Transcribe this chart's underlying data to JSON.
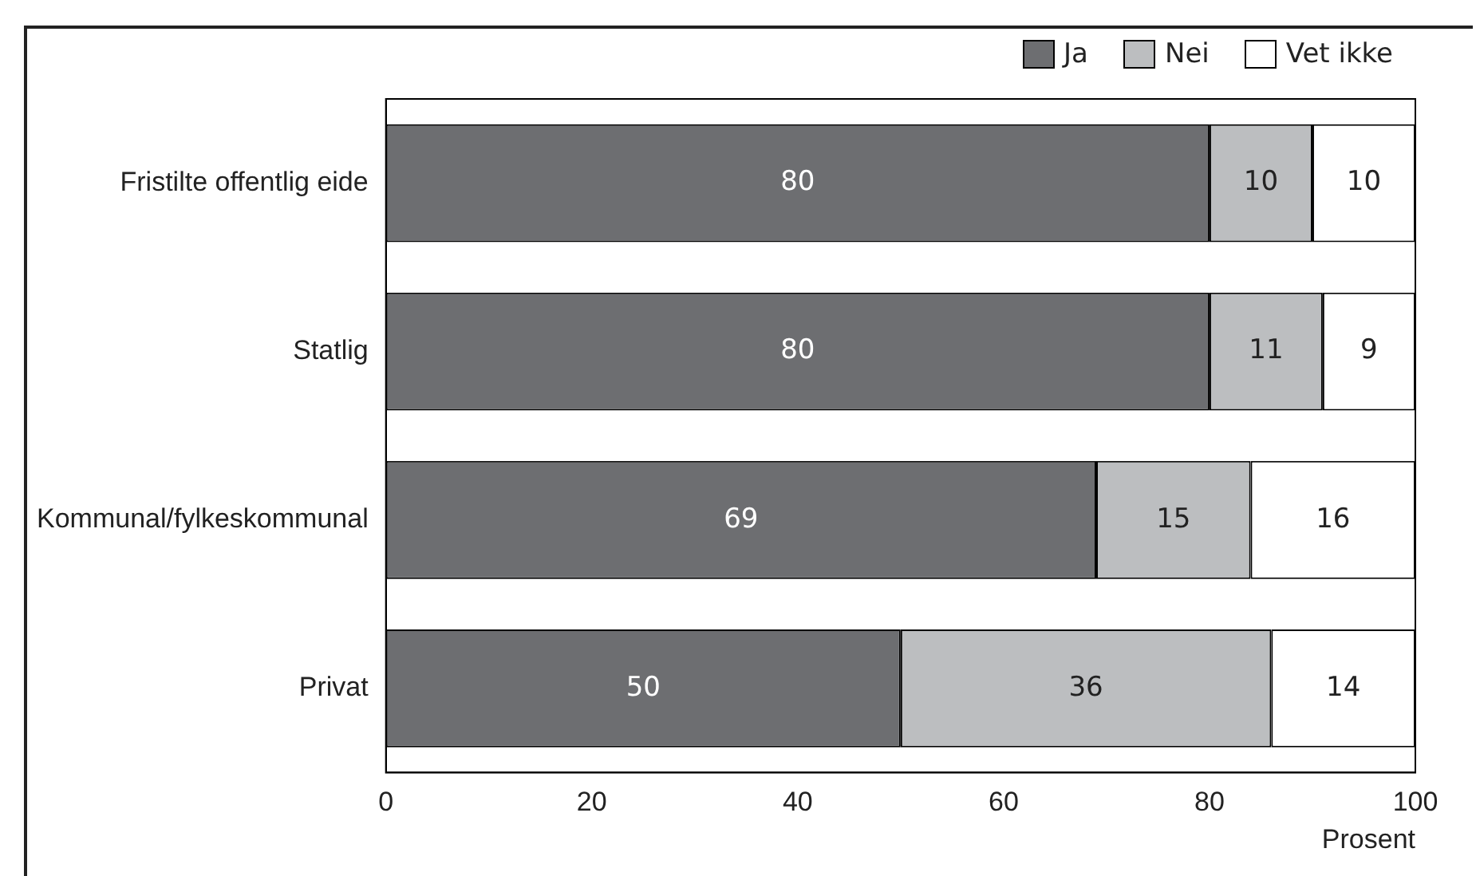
{
  "chart_data": {
    "type": "bar",
    "orientation": "horizontal",
    "stacked": true,
    "categories": [
      "Fristilte offentlig eide",
      "Statlig",
      "Kommunal/fylkeskommunal",
      "Privat"
    ],
    "series": [
      {
        "name": "Ja",
        "color": "#6d6e71",
        "values": [
          80,
          80,
          69,
          50
        ]
      },
      {
        "name": "Nei",
        "color": "#bcbec0",
        "values": [
          10,
          11,
          15,
          36
        ]
      },
      {
        "name": "Vet ikke",
        "color": "#ffffff",
        "values": [
          10,
          9,
          16,
          14
        ]
      }
    ],
    "xlim": [
      0,
      100
    ],
    "xticks": [
      0,
      20,
      40,
      60,
      80,
      100
    ],
    "xlabel": "Prosent",
    "data_labels": true,
    "legend": "top right",
    "grid": false
  }
}
